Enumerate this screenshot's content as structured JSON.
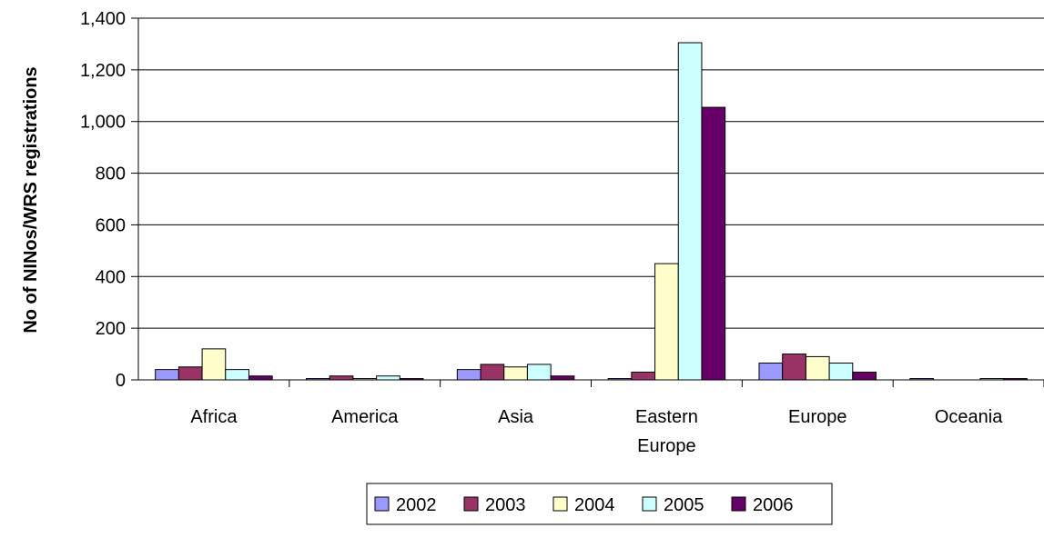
{
  "chart_data": {
    "type": "bar",
    "title": "",
    "xlabel": "",
    "ylabel": "No of NINos/WRS registrations",
    "ylim": [
      0,
      1400
    ],
    "yticks": [
      0,
      200,
      400,
      600,
      800,
      1000,
      1200,
      1400
    ],
    "ytick_labels": [
      "0",
      "200",
      "400",
      "600",
      "800",
      "1,000",
      "1,200",
      "1,400"
    ],
    "categories": [
      "Africa",
      "America",
      "Asia",
      "Eastern Europe",
      "Europe",
      "Oceania"
    ],
    "category_label_lines": [
      [
        "Africa"
      ],
      [
        "America"
      ],
      [
        "Asia"
      ],
      [
        "Eastern",
        "Europe"
      ],
      [
        "Europe"
      ],
      [
        "Oceania"
      ]
    ],
    "series": [
      {
        "name": "2002",
        "color": "#9999ff",
        "values": [
          40,
          5,
          40,
          5,
          65,
          5
        ]
      },
      {
        "name": "2003",
        "color": "#993366",
        "values": [
          50,
          15,
          60,
          30,
          100,
          0
        ]
      },
      {
        "name": "2004",
        "color": "#ffffcc",
        "values": [
          120,
          5,
          50,
          450,
          90,
          0
        ]
      },
      {
        "name": "2005",
        "color": "#ccffff",
        "values": [
          40,
          15,
          60,
          1305,
          65,
          5
        ]
      },
      {
        "name": "2006",
        "color": "#660066",
        "values": [
          15,
          5,
          15,
          1055,
          30,
          5
        ]
      }
    ],
    "grid": true,
    "legend_position": "bottom"
  }
}
